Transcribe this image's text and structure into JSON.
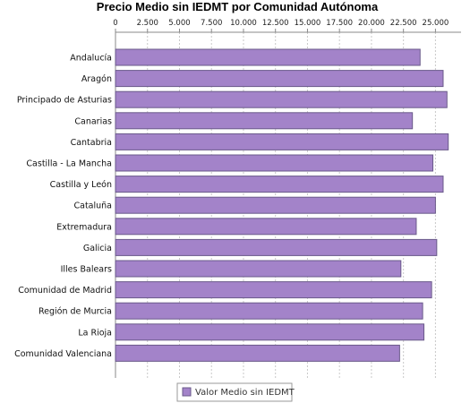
{
  "chart_data": {
    "type": "bar",
    "orientation": "horizontal",
    "title": "Precio Medio sin IEDMT por Comunidad Autónoma",
    "xlim": [
      0,
      27000
    ],
    "x_ticks": [
      0,
      2500,
      5000,
      7500,
      10000,
      12500,
      15000,
      17500,
      20000,
      22500,
      25000
    ],
    "x_tick_labels": [
      "0",
      "2.500",
      "5.000",
      "7.500",
      "10.000",
      "12.500",
      "15.000",
      "17.500",
      "20.000",
      "22.500",
      "25.000"
    ],
    "grid": true,
    "legend_position": "bottom",
    "categories": [
      "Andalucía",
      "Aragón",
      "Principado de Asturias",
      "Canarias",
      "Cantabria",
      "Castilla - La Mancha",
      "Castilla y León",
      "Cataluña",
      "Extremadura",
      "Galicia",
      "Illes Balears",
      "Comunidad de Madrid",
      "Región de Murcia",
      "La Rioja",
      "Comunidad Valenciana"
    ],
    "series": [
      {
        "name": "Valor Medio sin IEDMT",
        "color": "#a383c9",
        "values": [
          23800,
          25600,
          25900,
          23200,
          26000,
          24800,
          25600,
          25000,
          23500,
          25100,
          22300,
          24700,
          24000,
          24100,
          22200
        ]
      }
    ]
  }
}
